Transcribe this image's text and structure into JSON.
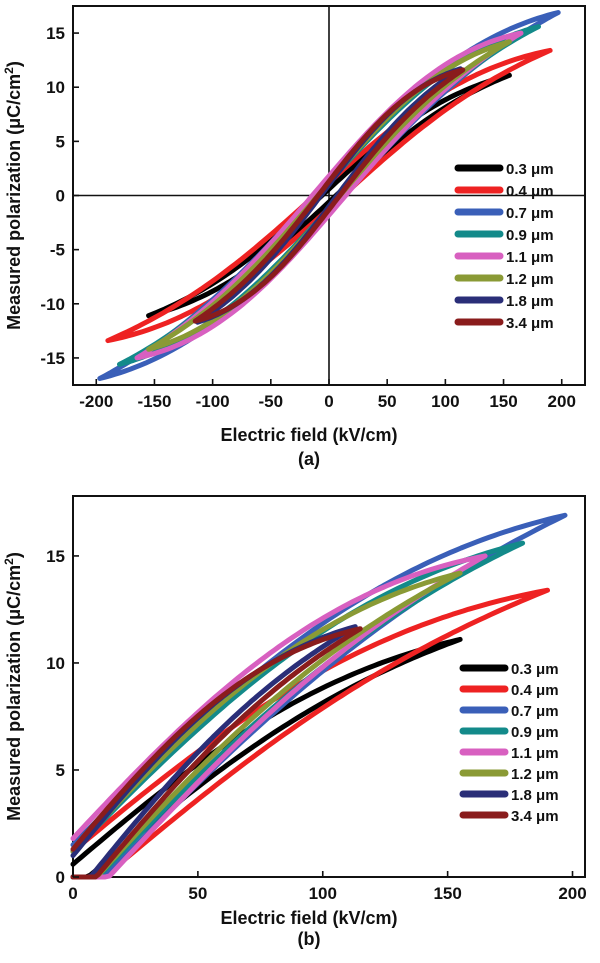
{
  "chart_data": [
    {
      "panel": "(a)",
      "type": "line",
      "xlabel": "Electric field (kV/cm)",
      "ylabel": "Measured polarization (μC/cm",
      "ylabel_sup": "2",
      "ylabel_end": ")",
      "xlim": [
        -220,
        220
      ],
      "ylim": [
        -17.5,
        17.5
      ],
      "xticks": [
        -200,
        -150,
        -100,
        -50,
        0,
        50,
        100,
        150,
        200
      ],
      "yticks": [
        -15,
        -10,
        -5,
        0,
        5,
        10,
        15
      ],
      "zero_lines": true,
      "legend_position": "right",
      "series": [
        {
          "name": "0.3 μm",
          "color": "#000000",
          "Emax": 155,
          "Pmax": 11.1,
          "Pr": 0.6
        },
        {
          "name": "0.4 μm",
          "color": "#ee2222",
          "Emax": 190,
          "Pmax": 13.4,
          "Pr": 1.2
        },
        {
          "name": "0.7 μm",
          "color": "#3a5fb8",
          "Emax": 197,
          "Pmax": 16.9,
          "Pr": 1.5
        },
        {
          "name": "0.9 μm",
          "color": "#138a8a",
          "Emax": 180,
          "Pmax": 15.6,
          "Pr": 1.2
        },
        {
          "name": "1.1 μm",
          "color": "#d860c0",
          "Emax": 165,
          "Pmax": 15.0,
          "Pr": 1.8
        },
        {
          "name": "1.2 μm",
          "color": "#8a9a35",
          "Emax": 155,
          "Pmax": 14.2,
          "Pr": 1.2
        },
        {
          "name": "1.8 μm",
          "color": "#2a2e78",
          "Emax": 113,
          "Pmax": 11.7,
          "Pr": 1.0
        },
        {
          "name": "3.4 μm",
          "color": "#8a1c1c",
          "Emax": 115,
          "Pmax": 11.6,
          "Pr": 1.3
        }
      ]
    },
    {
      "panel": "(b)",
      "type": "line",
      "xlabel": "Electric field (kV/cm)",
      "ylabel": "Measured polarization (μC/cm",
      "ylabel_sup": "2",
      "ylabel_end": ")",
      "xlim": [
        0,
        205
      ],
      "ylim": [
        0,
        17.8
      ],
      "xticks": [
        0,
        50,
        100,
        150,
        200
      ],
      "yticks": [
        0,
        5,
        10,
        15
      ],
      "legend_position": "right",
      "series": [
        {
          "name": "0.3 μm",
          "color": "#000000",
          "Emax": 155,
          "Pmax": 11.1,
          "Pr": 0.6
        },
        {
          "name": "0.4 μm",
          "color": "#ee2222",
          "Emax": 190,
          "Pmax": 13.4,
          "Pr": 1.2
        },
        {
          "name": "0.7 μm",
          "color": "#3a5fb8",
          "Emax": 197,
          "Pmax": 16.9,
          "Pr": 1.5
        },
        {
          "name": "0.9 μm",
          "color": "#138a8a",
          "Emax": 180,
          "Pmax": 15.6,
          "Pr": 1.2
        },
        {
          "name": "1.1 μm",
          "color": "#d860c0",
          "Emax": 165,
          "Pmax": 15.0,
          "Pr": 1.8
        },
        {
          "name": "1.2 μm",
          "color": "#8a9a35",
          "Emax": 155,
          "Pmax": 14.2,
          "Pr": 1.2
        },
        {
          "name": "1.8 μm",
          "color": "#2a2e78",
          "Emax": 113,
          "Pmax": 11.7,
          "Pr": 1.0
        },
        {
          "name": "3.4 μm",
          "color": "#8a1c1c",
          "Emax": 115,
          "Pmax": 11.6,
          "Pr": 1.3
        }
      ]
    }
  ]
}
